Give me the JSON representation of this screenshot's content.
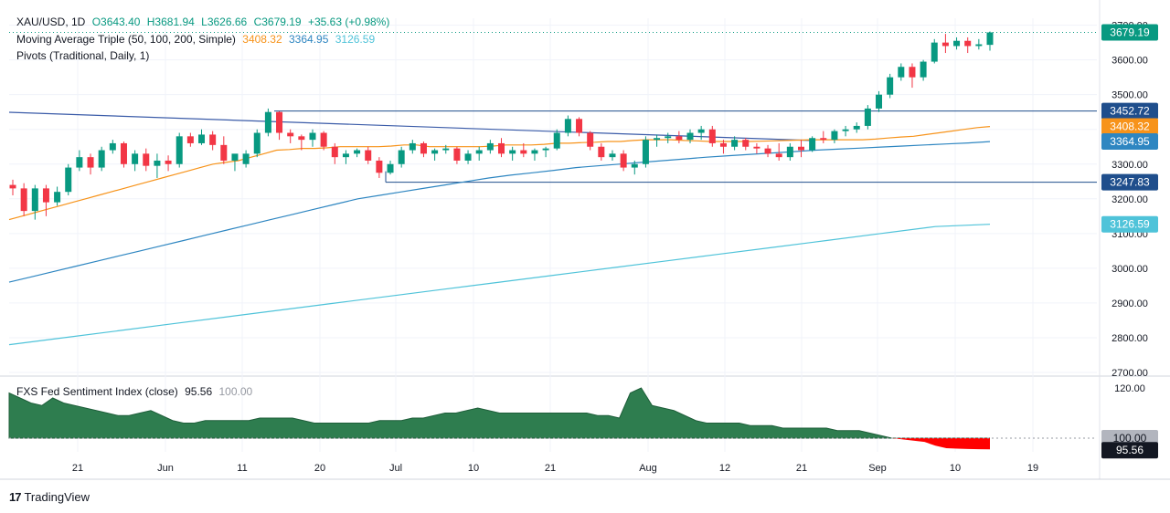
{
  "header": {
    "symbol": "XAU/USD, 1D",
    "open": "O3643.40",
    "high": "H3681.94",
    "low": "L3626.66",
    "close": "C3679.19",
    "change": "+35.63 (+0.98%)"
  },
  "ma_legend": {
    "label": "Moving Average Triple (50, 100, 200, Simple)",
    "v1": "3408.32",
    "v2": "3364.95",
    "v3": "3126.59"
  },
  "pivots_label": "Pivots (Traditional, Daily, 1)",
  "indicator_legend": {
    "label": "FXS Fed Sentiment Index (close)",
    "value": "95.56",
    "ref": "100.00"
  },
  "footer": {
    "logo": "17",
    "brand": "TradingView"
  },
  "colors": {
    "up": "#089981",
    "down": "#f23645",
    "ma50": "#f7931a",
    "ma100": "#2e86c1",
    "ma200": "#4fc3d9",
    "trend": "#3a5ba8",
    "pivot": "#1f4e8c",
    "sentiment_fill": "#2e7d4f",
    "sentiment_neg": "#ff0000"
  },
  "chart_data": {
    "type": "candlestick",
    "title": "XAU/USD, 1D",
    "y_ticks": [
      2700,
      2800,
      2900,
      3000,
      3100,
      3200,
      3300,
      3400,
      3500,
      3600,
      3700
    ],
    "ylim": [
      2700,
      3720
    ],
    "x_tick_labels": [
      "21",
      "Jun",
      "11",
      "20",
      "Jul",
      "10",
      "21",
      "Aug",
      "12",
      "21",
      "Sep",
      "10",
      "19"
    ],
    "price_labels": [
      {
        "value": "3679.19",
        "color": "#089981"
      },
      {
        "value": "3452.72",
        "color": "#1f4e8c"
      },
      {
        "value": "3408.32",
        "color": "#f7931a"
      },
      {
        "value": "3364.95",
        "color": "#2e86c1"
      },
      {
        "value": "3247.83",
        "color": "#1f4e8c"
      },
      {
        "value": "3126.59",
        "color": "#4fc3d9"
      }
    ],
    "candles": [
      [
        3240,
        3255,
        3210,
        3230
      ],
      [
        3230,
        3245,
        3150,
        3165
      ],
      [
        3165,
        3240,
        3140,
        3230
      ],
      [
        3230,
        3240,
        3150,
        3190
      ],
      [
        3190,
        3235,
        3180,
        3220
      ],
      [
        3220,
        3300,
        3210,
        3290
      ],
      [
        3290,
        3340,
        3280,
        3320
      ],
      [
        3320,
        3330,
        3270,
        3290
      ],
      [
        3290,
        3350,
        3280,
        3340
      ],
      [
        3340,
        3370,
        3330,
        3360
      ],
      [
        3360,
        3365,
        3290,
        3300
      ],
      [
        3300,
        3340,
        3280,
        3330
      ],
      [
        3330,
        3345,
        3280,
        3295
      ],
      [
        3295,
        3330,
        3260,
        3310
      ],
      [
        3310,
        3325,
        3280,
        3300
      ],
      [
        3300,
        3390,
        3290,
        3380
      ],
      [
        3380,
        3390,
        3350,
        3360
      ],
      [
        3360,
        3400,
        3355,
        3385
      ],
      [
        3385,
        3395,
        3340,
        3355
      ],
      [
        3355,
        3380,
        3300,
        3310
      ],
      [
        3310,
        3320,
        3280,
        3330
      ],
      [
        3300,
        3340,
        3290,
        3330
      ],
      [
        3330,
        3400,
        3320,
        3390
      ],
      [
        3390,
        3460,
        3380,
        3450
      ],
      [
        3450,
        3452,
        3370,
        3390
      ],
      [
        3390,
        3400,
        3360,
        3380
      ],
      [
        3380,
        3385,
        3340,
        3370
      ],
      [
        3370,
        3400,
        3350,
        3390
      ],
      [
        3390,
        3395,
        3340,
        3350
      ],
      [
        3350,
        3360,
        3300,
        3320
      ],
      [
        3320,
        3340,
        3300,
        3330
      ],
      [
        3330,
        3345,
        3320,
        3340
      ],
      [
        3340,
        3350,
        3300,
        3310
      ],
      [
        3310,
        3320,
        3260,
        3275
      ],
      [
        3275,
        3310,
        3270,
        3300
      ],
      [
        3300,
        3350,
        3290,
        3340
      ],
      [
        3340,
        3370,
        3330,
        3360
      ],
      [
        3360,
        3365,
        3320,
        3330
      ],
      [
        3330,
        3345,
        3310,
        3340
      ],
      [
        3340,
        3355,
        3330,
        3345
      ],
      [
        3345,
        3350,
        3300,
        3310
      ],
      [
        3310,
        3340,
        3300,
        3330
      ],
      [
        3330,
        3350,
        3310,
        3340
      ],
      [
        3340,
        3370,
        3330,
        3360
      ],
      [
        3360,
        3375,
        3320,
        3330
      ],
      [
        3330,
        3350,
        3310,
        3340
      ],
      [
        3340,
        3360,
        3320,
        3330
      ],
      [
        3330,
        3345,
        3310,
        3340
      ],
      [
        3340,
        3350,
        3320,
        3345
      ],
      [
        3345,
        3400,
        3340,
        3390
      ],
      [
        3390,
        3440,
        3380,
        3430
      ],
      [
        3430,
        3435,
        3380,
        3390
      ],
      [
        3390,
        3395,
        3340,
        3350
      ],
      [
        3350,
        3360,
        3310,
        3320
      ],
      [
        3320,
        3340,
        3310,
        3330
      ],
      [
        3330,
        3340,
        3280,
        3290
      ],
      [
        3290,
        3310,
        3270,
        3300
      ],
      [
        3300,
        3380,
        3290,
        3370
      ],
      [
        3370,
        3385,
        3350,
        3375
      ],
      [
        3375,
        3390,
        3360,
        3380
      ],
      [
        3380,
        3395,
        3360,
        3370
      ],
      [
        3370,
        3400,
        3360,
        3390
      ],
      [
        3390,
        3410,
        3370,
        3400
      ],
      [
        3400,
        3410,
        3350,
        3360
      ],
      [
        3360,
        3370,
        3330,
        3350
      ],
      [
        3350,
        3380,
        3340,
        3370
      ],
      [
        3370,
        3375,
        3340,
        3350
      ],
      [
        3350,
        3360,
        3330,
        3345
      ],
      [
        3345,
        3355,
        3320,
        3330
      ],
      [
        3330,
        3360,
        3310,
        3320
      ],
      [
        3320,
        3360,
        3310,
        3350
      ],
      [
        3350,
        3370,
        3320,
        3340
      ],
      [
        3340,
        3380,
        3335,
        3375
      ],
      [
        3375,
        3395,
        3360,
        3370
      ],
      [
        3370,
        3400,
        3360,
        3395
      ],
      [
        3395,
        3410,
        3380,
        3400
      ],
      [
        3400,
        3420,
        3390,
        3410
      ],
      [
        3410,
        3470,
        3400,
        3460
      ],
      [
        3460,
        3510,
        3450,
        3500
      ],
      [
        3500,
        3560,
        3490,
        3550
      ],
      [
        3550,
        3590,
        3540,
        3580
      ],
      [
        3580,
        3590,
        3520,
        3550
      ],
      [
        3550,
        3600,
        3540,
        3595
      ],
      [
        3595,
        3660,
        3590,
        3650
      ],
      [
        3650,
        3675,
        3620,
        3640
      ],
      [
        3640,
        3665,
        3630,
        3655
      ],
      [
        3655,
        3665,
        3620,
        3640
      ],
      [
        3640,
        3660,
        3630,
        3645
      ],
      [
        3643.4,
        3681.94,
        3626.66,
        3679.19
      ]
    ],
    "ma50": [
      3140,
      3150,
      3160,
      3170,
      3180,
      3190,
      3200,
      3210,
      3220,
      3230,
      3240,
      3250,
      3260,
      3270,
      3280,
      3290,
      3300,
      3305,
      3310,
      3320,
      3330,
      3340,
      3342,
      3345,
      3345,
      3347,
      3350,
      3350,
      3350,
      3350,
      3352,
      3355,
      3355,
      3350,
      3350,
      3350,
      3350,
      3350,
      3352,
      3355,
      3355,
      3355,
      3357,
      3360,
      3360,
      3362,
      3363,
      3365,
      3365,
      3368,
      3370,
      3370,
      3370,
      3368,
      3367,
      3365,
      3365,
      3365,
      3365,
      3366,
      3367,
      3368,
      3369,
      3370,
      3370,
      3370,
      3370,
      3370,
      3372,
      3375,
      3378,
      3380,
      3385,
      3390,
      3395,
      3400,
      3405,
      3408.32
    ],
    "ma100": [
      2960,
      2975,
      2990,
      3005,
      3020,
      3035,
      3050,
      3065,
      3080,
      3095,
      3110,
      3125,
      3140,
      3155,
      3170,
      3185,
      3200,
      3210,
      3220,
      3230,
      3240,
      3250,
      3260,
      3268,
      3275,
      3282,
      3290,
      3295,
      3300,
      3305,
      3310,
      3315,
      3320,
      3324,
      3328,
      3332,
      3336,
      3340,
      3343,
      3346,
      3349,
      3352,
      3355,
      3358,
      3361,
      3364.95
    ],
    "ma200": [
      2780,
      2800,
      2820,
      2840,
      2860,
      2880,
      2900,
      2920,
      2940,
      2960,
      2980,
      3000,
      3020,
      3040,
      3060,
      3080,
      3100,
      3120,
      3126.59
    ],
    "sentiment": [
      118,
      116,
      114,
      113,
      116,
      114,
      113,
      112,
      111,
      110,
      109,
      109,
      110,
      111,
      109,
      107,
      106,
      106,
      107,
      107,
      107,
      107,
      107,
      108,
      108,
      108,
      108,
      107,
      106,
      106,
      106,
      106,
      106,
      106,
      107,
      107,
      107,
      108,
      108,
      109,
      110,
      110,
      111,
      112,
      111,
      110,
      110,
      110,
      110,
      110,
      110,
      110,
      110,
      110,
      109,
      109,
      108,
      118,
      120,
      113,
      112,
      111,
      109,
      107,
      106,
      106,
      106,
      106,
      105,
      105,
      105,
      104,
      104,
      104,
      104,
      104,
      103,
      103,
      103,
      102,
      101,
      100,
      99.5,
      99,
      98.5,
      97,
      96,
      95.8,
      95.7,
      95.6,
      95.56
    ],
    "indicator_ticks": [
      100,
      120
    ],
    "indicator_ref": 100.0
  }
}
